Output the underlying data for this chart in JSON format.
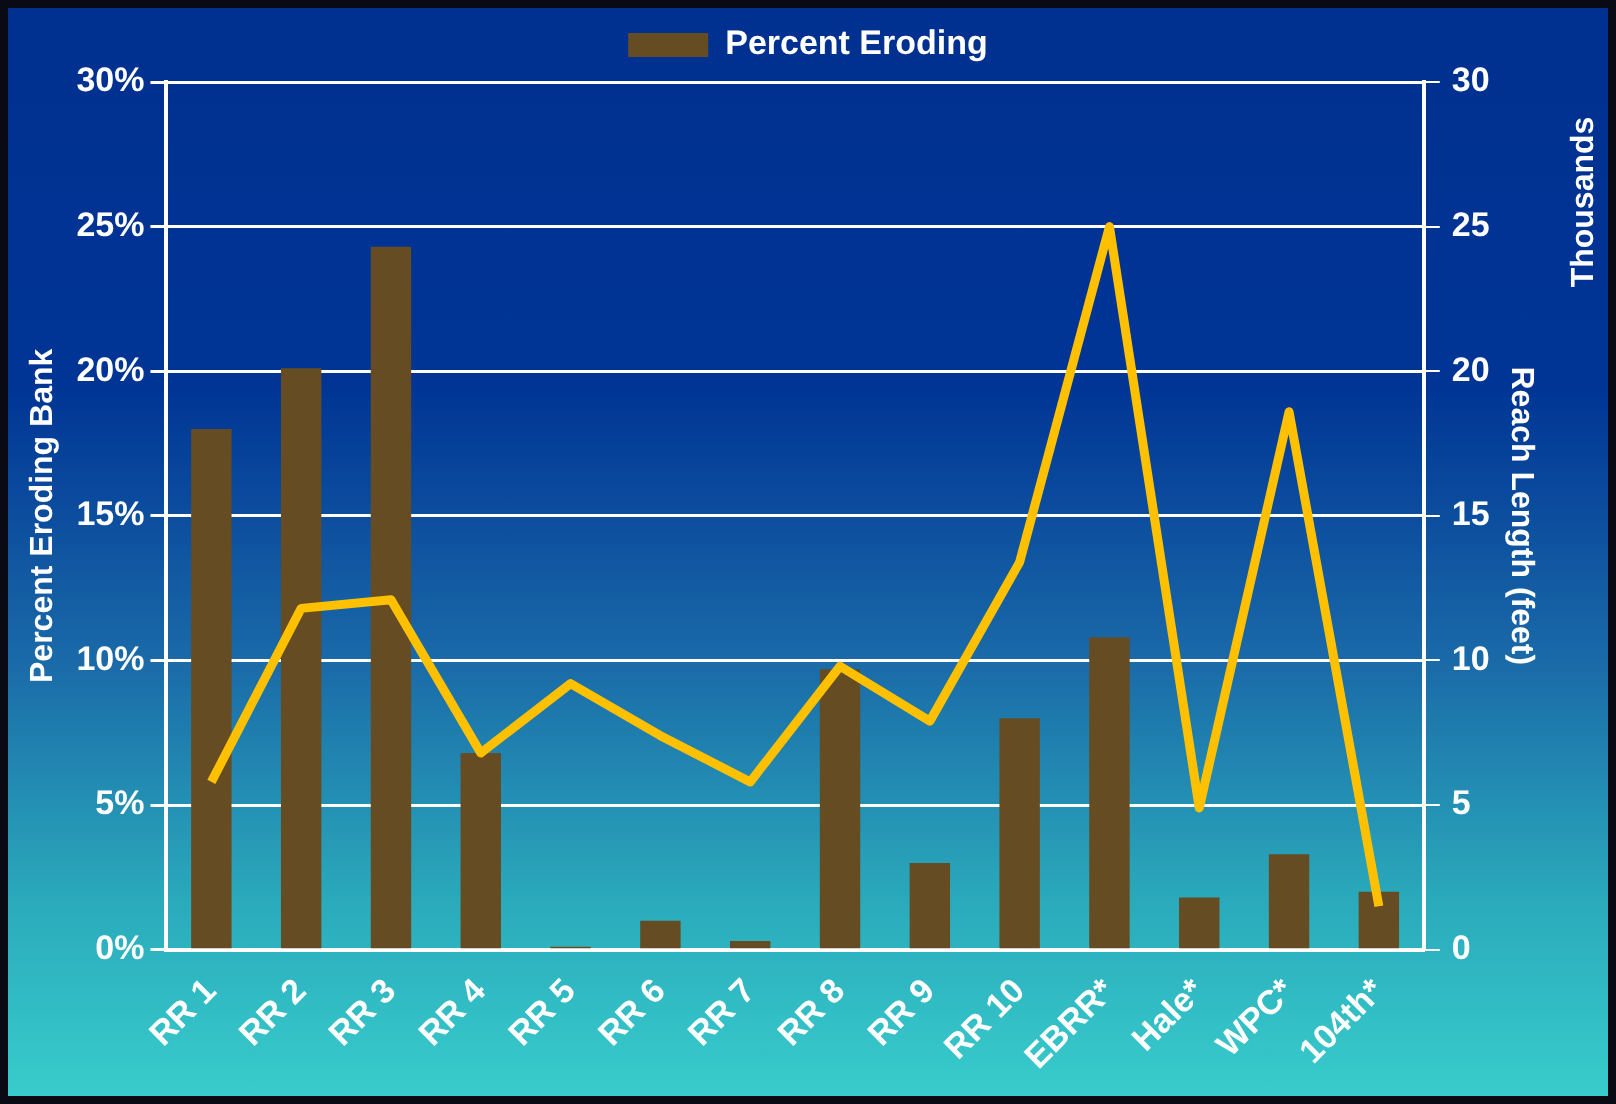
{
  "chart_data": {
    "type": "bar",
    "categories": [
      "RR 1",
      "RR 2",
      "RR 3",
      "RR 4",
      "RR 5",
      "RR 6",
      "RR 7",
      "RR 8",
      "RR 9",
      "RR 10",
      "EBRR*",
      "Hale*",
      "WPC*",
      "104th*"
    ],
    "series": [
      {
        "name": "Percent Eroding",
        "color": "#654c22",
        "values": [
          18.0,
          20.1,
          24.3,
          6.8,
          0.1,
          1.0,
          0.3,
          9.7,
          3.0,
          8.0,
          10.8,
          1.8,
          3.3,
          2.0
        ]
      },
      {
        "type": "line",
        "axis": "y2",
        "color": "#ffc000",
        "values": [
          5.8,
          11.8,
          12.1,
          6.8,
          9.2,
          7.4,
          5.8,
          9.8,
          7.9,
          13.4,
          25.0,
          4.9,
          18.6,
          1.5
        ]
      }
    ],
    "ylabel": "Percent Eroding Bank",
    "y2label": "Reach Length (feet)",
    "annotations": [
      "Thousands"
    ],
    "ylim": [
      0,
      30
    ],
    "yticks": [
      {
        "value": 0,
        "label": "0%"
      },
      {
        "value": 5,
        "label": "5%"
      },
      {
        "value": 10,
        "label": "10%"
      },
      {
        "value": 15,
        "label": "15%"
      },
      {
        "value": 20,
        "label": "20%"
      },
      {
        "value": 25,
        "label": "25%"
      },
      {
        "value": 30,
        "label": "30%"
      }
    ],
    "y2lim": [
      0,
      30
    ],
    "y2ticks": [
      0,
      5,
      10,
      15,
      20,
      25,
      30
    ],
    "grid": "y",
    "legend": "top",
    "marker": "none",
    "line_style": "solid"
  }
}
